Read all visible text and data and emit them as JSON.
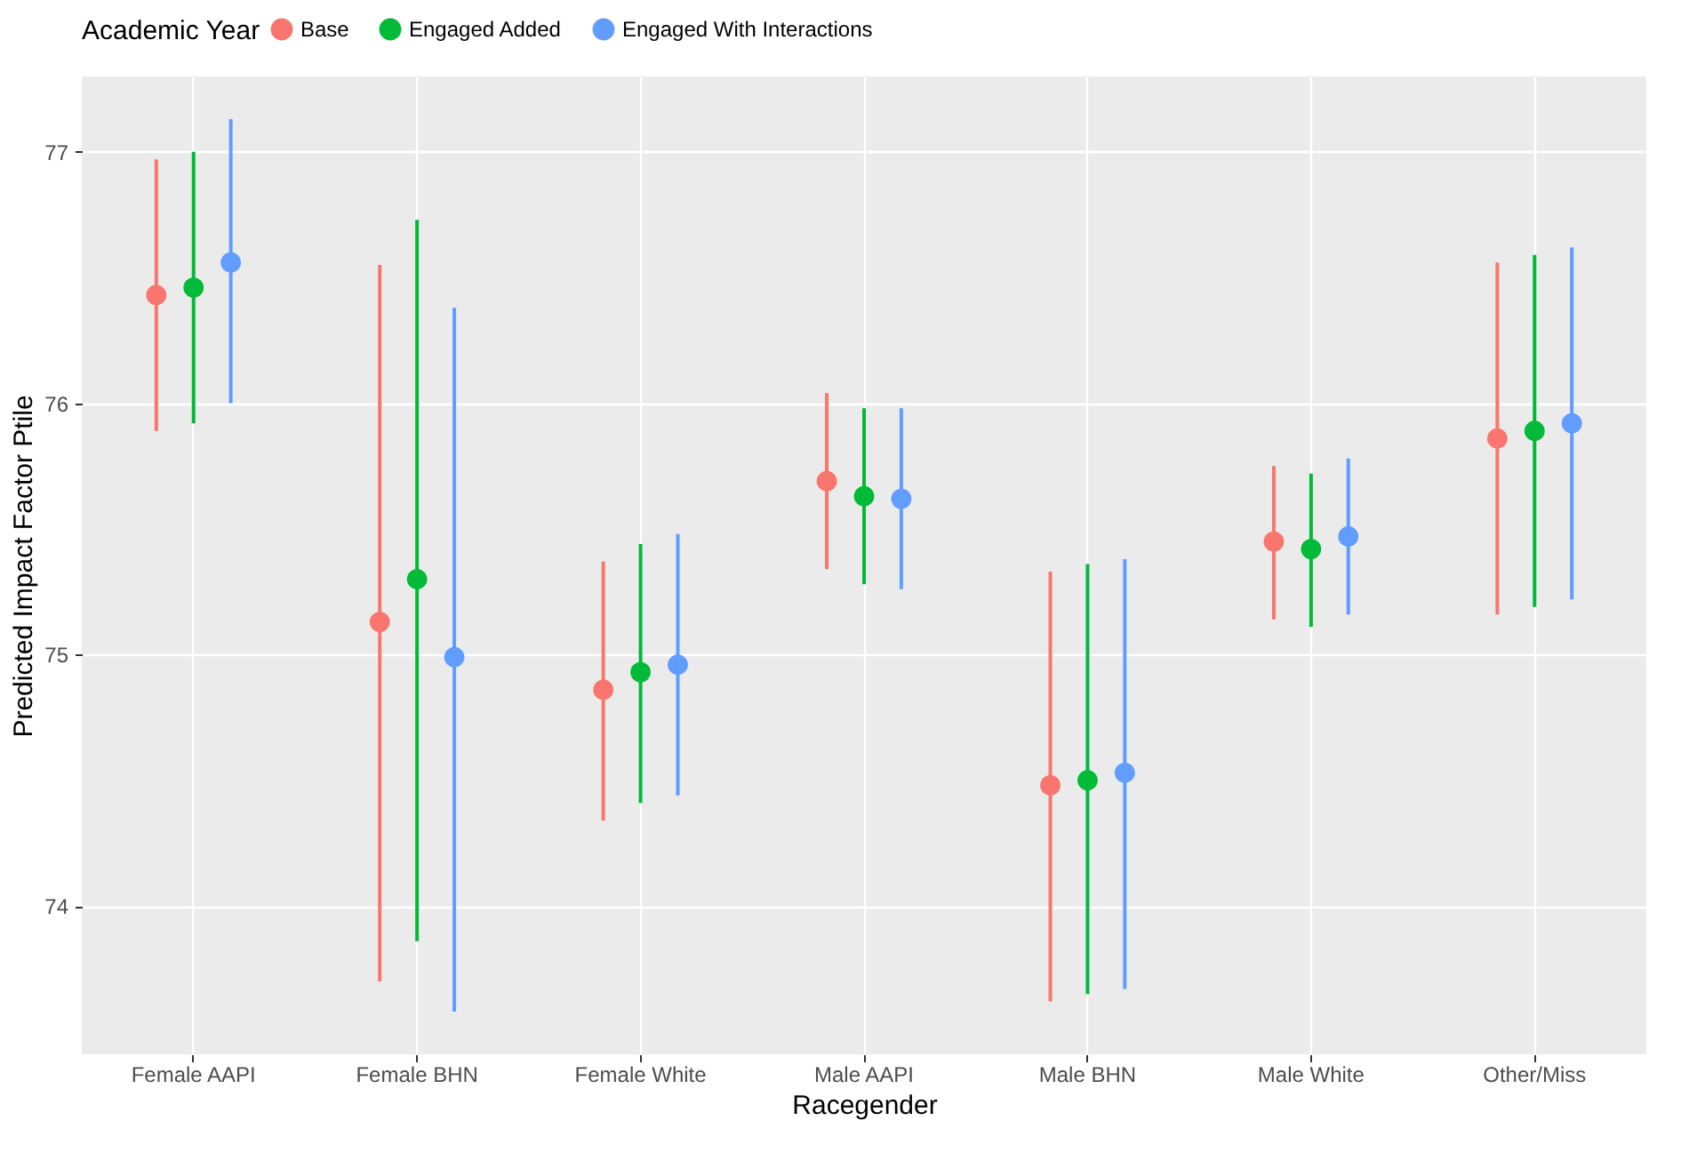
{
  "chart_data": {
    "type": "scatter",
    "xlabel": "Racegender",
    "ylabel": "Predicted Impact Factor Ptile",
    "legend_title": "Academic Year",
    "categories": [
      "Female AAPI",
      "Female BHN",
      "Female White",
      "Male AAPI",
      "Male BHN",
      "Male White",
      "Other/Miss"
    ],
    "series": [
      {
        "name": "Base",
        "color": "#f8766d",
        "values": [
          76.43,
          75.13,
          74.86,
          75.69,
          74.48,
          75.45,
          75.86
        ],
        "errors": [
          [
            75.89,
            76.97
          ],
          [
            73.7,
            76.55
          ],
          [
            74.34,
            75.37
          ],
          [
            75.34,
            76.04
          ],
          [
            73.62,
            75.33
          ],
          [
            75.14,
            75.75
          ],
          [
            75.16,
            76.56
          ]
        ]
      },
      {
        "name": "Engaged Added",
        "color": "#00ba38",
        "values": [
          76.46,
          75.3,
          74.93,
          75.63,
          74.5,
          75.42,
          75.89
        ],
        "errors": [
          [
            75.92,
            77.0
          ],
          [
            73.86,
            76.73
          ],
          [
            74.41,
            75.44
          ],
          [
            75.28,
            75.98
          ],
          [
            73.65,
            75.36
          ],
          [
            75.11,
            75.72
          ],
          [
            75.19,
            76.59
          ]
        ]
      },
      {
        "name": "Engaged With Interactions",
        "color": "#619cff",
        "values": [
          76.56,
          74.99,
          74.96,
          75.62,
          74.53,
          75.47,
          75.92
        ],
        "errors": [
          [
            76.0,
            77.13
          ],
          [
            73.58,
            76.38
          ],
          [
            74.44,
            75.48
          ],
          [
            75.26,
            75.98
          ],
          [
            73.67,
            75.38
          ],
          [
            75.16,
            75.78
          ],
          [
            75.22,
            76.62
          ]
        ]
      }
    ],
    "ylim": [
      73.41,
      77.3
    ],
    "yticks": [
      74,
      75,
      76,
      77
    ],
    "grid": true,
    "legend": "top",
    "marker": "circle"
  }
}
